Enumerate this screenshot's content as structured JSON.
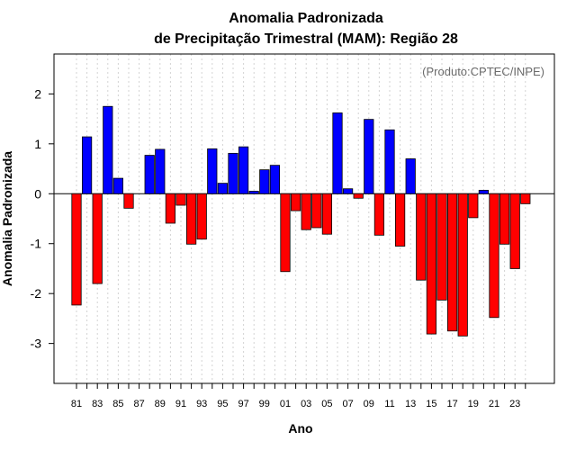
{
  "chart_data": {
    "type": "bar",
    "title_line1": "Anomalia Padronizada",
    "title_line2": "de Precipitação Trimestral (MAM): Região 28",
    "xlabel": "Ano",
    "ylabel": "Anomalia Padronizada",
    "annotation": "(Produto:CPTEC/INPE)",
    "ylim": [
      -3.8,
      2.8
    ],
    "yticks": [
      -3,
      -2,
      -1,
      0,
      1,
      2
    ],
    "ytick_labels": [
      "-3",
      "-2",
      "-1",
      "0",
      "1",
      "2"
    ],
    "grid": "vertical-dotted",
    "colors": {
      "positive": "#0000ff",
      "negative": "#ff0000",
      "grid": "#d3d3d3",
      "zero_line": "#000000"
    },
    "categories": [
      "81",
      "82",
      "83",
      "84",
      "85",
      "86",
      "87",
      "88",
      "89",
      "90",
      "91",
      "92",
      "93",
      "94",
      "95",
      "96",
      "97",
      "98",
      "99",
      "00",
      "01",
      "02",
      "03",
      "04",
      "05",
      "06",
      "07",
      "08",
      "09",
      "10",
      "11",
      "12",
      "13",
      "14",
      "15",
      "16",
      "17",
      "18",
      "19",
      "20",
      "21",
      "22",
      "23",
      "24"
    ],
    "xtick_labels": [
      "81",
      "83",
      "85",
      "87",
      "89",
      "91",
      "93",
      "95",
      "97",
      "99",
      "01",
      "03",
      "05",
      "07",
      "09",
      "11",
      "13",
      "15",
      "17",
      "19",
      "21",
      "23"
    ],
    "values": [
      -2.23,
      1.14,
      -1.8,
      1.75,
      0.31,
      -0.29,
      0.0,
      0.77,
      0.89,
      -0.59,
      -0.23,
      -1.01,
      -0.91,
      0.9,
      0.21,
      0.81,
      0.94,
      0.05,
      0.48,
      0.57,
      -1.56,
      -0.34,
      -0.72,
      -0.68,
      -0.81,
      1.62,
      0.1,
      -0.09,
      1.49,
      -0.83,
      1.28,
      -1.05,
      0.7,
      -1.73,
      -2.81,
      -2.13,
      -2.75,
      -2.85,
      -0.48,
      0.07,
      -2.48,
      -1.01,
      -1.5,
      -0.2
    ]
  }
}
